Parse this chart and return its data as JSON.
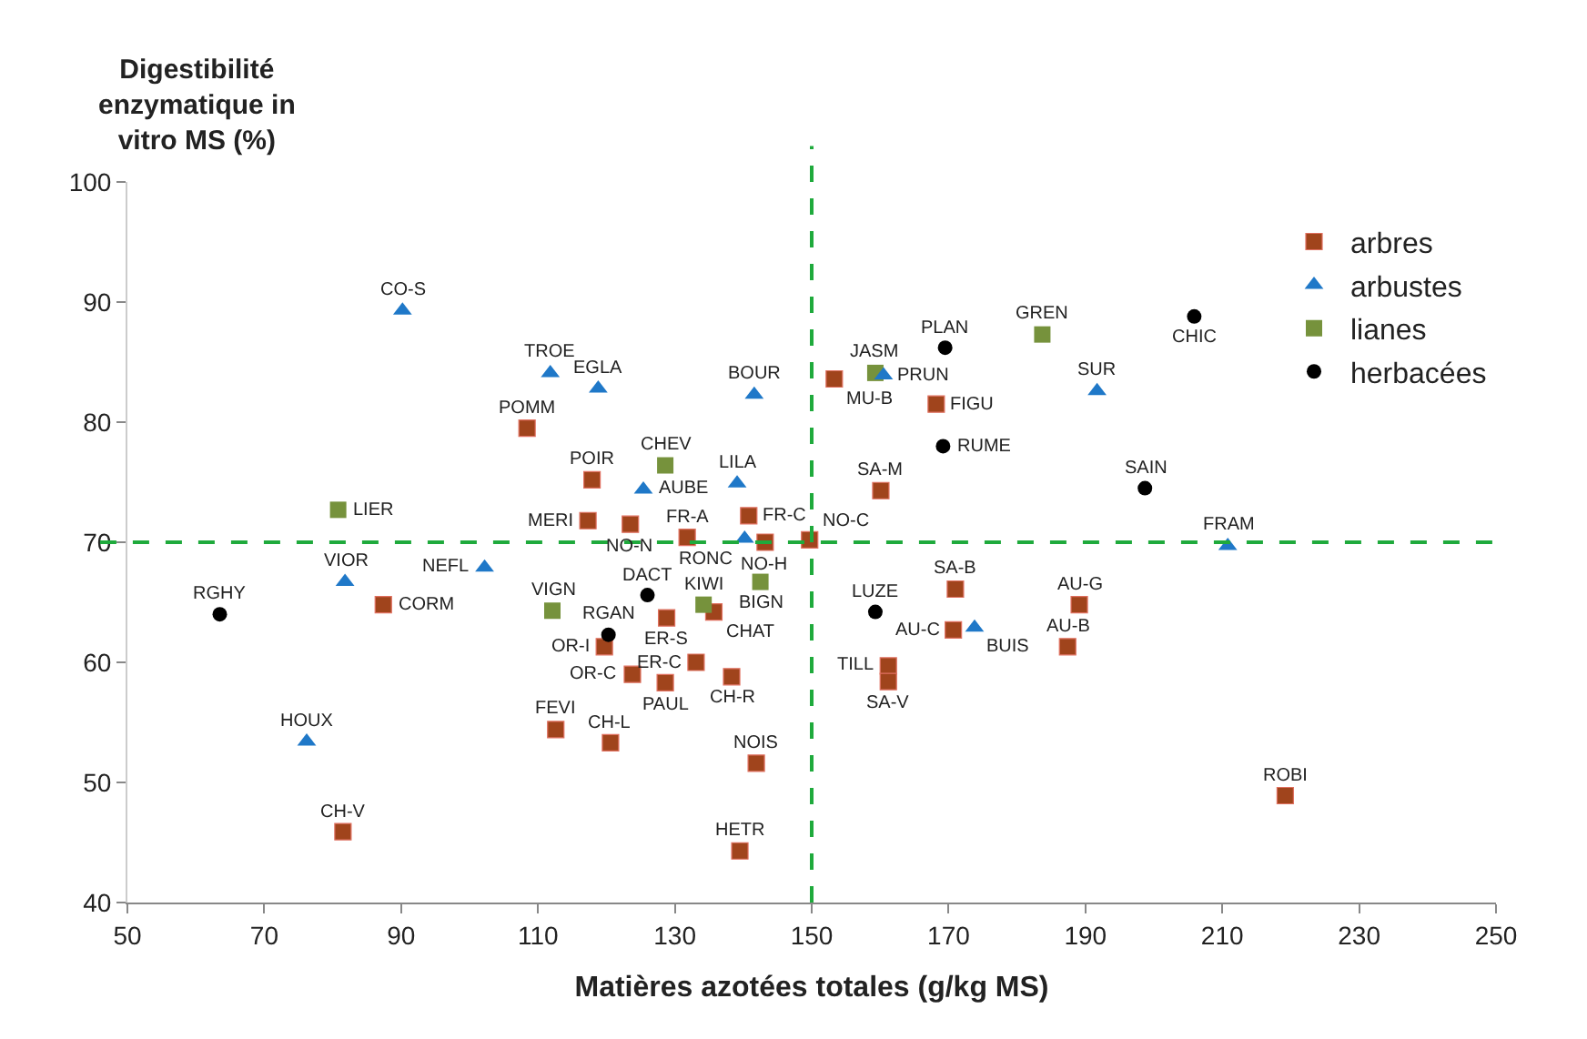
{
  "chart_data": {
    "type": "scatter",
    "xlabel": "Matières azotées totales (g/kg MS)",
    "ylabel": "Digestibilité enzymatique in vitro MS (%)",
    "xlim": [
      50,
      250
    ],
    "xticks": [
      50,
      70,
      90,
      110,
      130,
      150,
      170,
      190,
      210,
      230,
      250
    ],
    "ylim": [
      40,
      100
    ],
    "yticks": [
      40,
      50,
      60,
      70,
      80,
      90,
      100
    ],
    "legend": "top right",
    "series": [
      {
        "name": "arbres",
        "color": "#a0441c",
        "marker": "square",
        "x": [
          108.4,
          117.9,
          117.3,
          123.5,
          131.8,
          140.8,
          143.2,
          149.7,
          153.3,
          168.2,
          160.1,
          171.0,
          170.7,
          161.2,
          161.2,
          189.1,
          187.4,
          219.2,
          87.4,
          81.5,
          112.6,
          120.6,
          119.7,
          123.8,
          128.8,
          128.6,
          133.1,
          135.7,
          138.3,
          141.9,
          139.5
        ],
        "values": [
          79.5,
          75.2,
          71.8,
          71.5,
          70.4,
          72.2,
          70.0,
          70.2,
          83.6,
          81.5,
          74.3,
          66.1,
          62.7,
          59.7,
          58.4,
          64.8,
          61.3,
          48.9,
          64.8,
          45.9,
          54.4,
          53.3,
          61.3,
          59.0,
          63.7,
          58.3,
          60.0,
          64.2,
          58.8,
          51.6,
          44.3
        ]
      },
      {
        "name": "arbustes",
        "color": "#1f78c8",
        "marker": "triangle",
        "x": [
          90.2,
          111.8,
          118.8,
          141.6,
          125.4,
          139.1,
          140.2,
          102.2,
          81.8,
          76.2,
          160.5,
          191.7,
          210.8,
          173.8
        ],
        "values": [
          89.3,
          84.1,
          82.8,
          82.3,
          74.4,
          74.9,
          70.3,
          67.9,
          66.7,
          53.4,
          83.9,
          82.6,
          69.7,
          62.9
        ]
      },
      {
        "name": "lianes",
        "color": "#76923c",
        "marker": "square",
        "x": [
          80.8,
          128.6,
          112.1,
          134.2,
          142.5,
          159.3,
          183.7
        ],
        "values": [
          72.7,
          76.4,
          64.3,
          64.8,
          66.7,
          84.1,
          87.3
        ]
      },
      {
        "name": "herbacées",
        "color": "#000000",
        "marker": "circle",
        "x": [
          63.5,
          126.0,
          120.3,
          159.3,
          169.5,
          169.2,
          205.9,
          198.7
        ],
        "values": [
          64.0,
          65.6,
          62.3,
          64.2,
          86.2,
          78.0,
          88.8,
          74.5
        ]
      }
    ],
    "ref_lines": [
      {
        "axis": "x",
        "value": 150,
        "color": "#1faa3c",
        "line_style": "dashed"
      },
      {
        "axis": "y",
        "value": 70,
        "color": "#1faa3c",
        "line_style": "dashed"
      }
    ],
    "annotations": [
      {
        "text": "POMM",
        "x": 108.4,
        "y": 79.5
      },
      {
        "text": "POIR",
        "x": 117.9,
        "y": 75.2
      },
      {
        "text": "MERI",
        "x": 117.3,
        "y": 71.8
      },
      {
        "text": "NO-N",
        "x": 123.5,
        "y": 71.5
      },
      {
        "text": "FR-A",
        "x": 131.8,
        "y": 70.4
      },
      {
        "text": "FR-C",
        "x": 140.8,
        "y": 72.2
      },
      {
        "text": "NO-H",
        "x": 143.2,
        "y": 70.0
      },
      {
        "text": "NO-C",
        "x": 149.7,
        "y": 70.2
      },
      {
        "text": "MU-B",
        "x": 153.3,
        "y": 83.6
      },
      {
        "text": "FIGU",
        "x": 168.2,
        "y": 81.5
      },
      {
        "text": "SA-M",
        "x": 160.1,
        "y": 74.3
      },
      {
        "text": "SA-B",
        "x": 171.0,
        "y": 66.1
      },
      {
        "text": "AU-C",
        "x": 170.7,
        "y": 62.7
      },
      {
        "text": "TILL",
        "x": 161.2,
        "y": 59.7
      },
      {
        "text": "SA-V",
        "x": 161.2,
        "y": 58.4
      },
      {
        "text": "AU-G",
        "x": 189.1,
        "y": 64.8
      },
      {
        "text": "AU-B",
        "x": 187.4,
        "y": 61.3
      },
      {
        "text": "ROBI",
        "x": 219.2,
        "y": 48.9
      },
      {
        "text": "CORM",
        "x": 87.4,
        "y": 64.8
      },
      {
        "text": "CH-V",
        "x": 81.5,
        "y": 45.9
      },
      {
        "text": "FEVI",
        "x": 112.6,
        "y": 54.4
      },
      {
        "text": "CH-L",
        "x": 120.6,
        "y": 53.3
      },
      {
        "text": "OR-I",
        "x": 119.7,
        "y": 61.3
      },
      {
        "text": "OR-C",
        "x": 123.8,
        "y": 59.0
      },
      {
        "text": "ER-S",
        "x": 128.8,
        "y": 63.7
      },
      {
        "text": "PAUL",
        "x": 128.6,
        "y": 58.3
      },
      {
        "text": "ER-C",
        "x": 133.1,
        "y": 60.0
      },
      {
        "text": "CHAT",
        "x": 135.7,
        "y": 64.2
      },
      {
        "text": "CH-R",
        "x": 138.3,
        "y": 58.8
      },
      {
        "text": "NOIS",
        "x": 141.9,
        "y": 51.6
      },
      {
        "text": "HETR",
        "x": 139.5,
        "y": 44.3
      },
      {
        "text": "CO-S",
        "x": 90.2,
        "y": 89.3
      },
      {
        "text": "TROE",
        "x": 111.8,
        "y": 84.1
      },
      {
        "text": "EGLA",
        "x": 118.8,
        "y": 82.8
      },
      {
        "text": "BOUR",
        "x": 141.6,
        "y": 82.3
      },
      {
        "text": "AUBE",
        "x": 125.4,
        "y": 74.4
      },
      {
        "text": "LILA",
        "x": 139.1,
        "y": 74.9
      },
      {
        "text": "RONC",
        "x": 140.2,
        "y": 70.3
      },
      {
        "text": "NEFL",
        "x": 102.2,
        "y": 67.9
      },
      {
        "text": "VIOR",
        "x": 81.8,
        "y": 66.7
      },
      {
        "text": "HOUX",
        "x": 76.2,
        "y": 53.4
      },
      {
        "text": "PRUN",
        "x": 160.5,
        "y": 83.9
      },
      {
        "text": "SUR",
        "x": 191.7,
        "y": 82.6
      },
      {
        "text": "FRAM",
        "x": 210.8,
        "y": 69.7
      },
      {
        "text": "BUIS",
        "x": 173.8,
        "y": 62.9
      },
      {
        "text": "LIER",
        "x": 80.8,
        "y": 72.7
      },
      {
        "text": "CHEV",
        "x": 128.6,
        "y": 76.4
      },
      {
        "text": "VIGN",
        "x": 112.1,
        "y": 64.3
      },
      {
        "text": "KIWI",
        "x": 134.2,
        "y": 64.8
      },
      {
        "text": "BIGN",
        "x": 142.5,
        "y": 66.7
      },
      {
        "text": "JASM",
        "x": 159.3,
        "y": 84.1
      },
      {
        "text": "GREN",
        "x": 183.7,
        "y": 87.3
      },
      {
        "text": "RGHY",
        "x": 63.5,
        "y": 64.0
      },
      {
        "text": "DACT",
        "x": 126.0,
        "y": 65.6
      },
      {
        "text": "RGAN",
        "x": 120.3,
        "y": 62.3
      },
      {
        "text": "LUZE",
        "x": 159.3,
        "y": 64.2
      },
      {
        "text": "PLAN",
        "x": 169.5,
        "y": 86.2
      },
      {
        "text": "RUME",
        "x": 169.2,
        "y": 78.0
      },
      {
        "text": "CHIC",
        "x": 205.9,
        "y": 88.8
      },
      {
        "text": "SAIN",
        "x": 198.7,
        "y": 74.5
      }
    ]
  }
}
